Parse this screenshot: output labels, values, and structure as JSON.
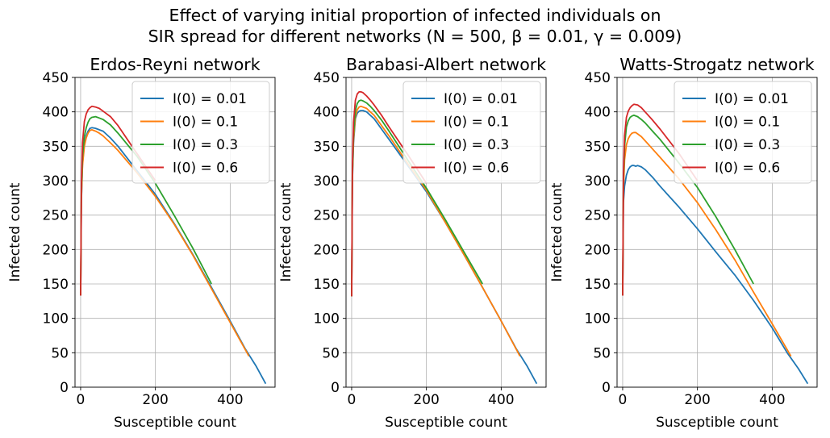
{
  "figure": {
    "title_line1": "Effect of varying initial proportion of infected individuals on",
    "title_line2": "SIR spread for different networks (N = 500, β = 0.01, γ = 0.009)"
  },
  "colors": {
    "I(0) = 0.01": "#1f77b4",
    "I(0) = 0.1": "#ff7f0e",
    "I(0) = 0.3": "#2ca02c",
    "I(0) = 0.6": "#d62728",
    "grid": "#b0b0b0"
  },
  "chart_data": [
    {
      "type": "line",
      "title": "Erdos-Reyni network",
      "xlabel": "Susceptible count",
      "ylabel": "Infected count",
      "xlim": [
        -15,
        520
      ],
      "ylim": [
        0,
        450
      ],
      "xticks": [
        0,
        200,
        400
      ],
      "yticks": [
        0,
        50,
        100,
        150,
        200,
        250,
        300,
        350,
        400,
        450
      ],
      "grid": true,
      "legend": "top-right",
      "series": [
        {
          "name": "I(0) = 0.01",
          "x": [
            0,
            2,
            5,
            10,
            15,
            20,
            25,
            30,
            40,
            50,
            60,
            80,
            100,
            150,
            200,
            250,
            300,
            350,
            400,
            440,
            470,
            495
          ],
          "y": [
            133,
            270,
            325,
            352,
            365,
            372,
            376,
            377,
            376,
            374,
            372,
            362,
            350,
            315,
            280,
            238,
            193,
            145,
            96,
            56,
            30,
            5
          ]
        },
        {
          "name": "I(0) = 0.1",
          "x": [
            0,
            2,
            5,
            10,
            15,
            20,
            25,
            30,
            40,
            50,
            60,
            80,
            100,
            150,
            200,
            250,
            300,
            350,
            400,
            450
          ],
          "y": [
            133,
            275,
            322,
            350,
            362,
            369,
            373,
            374,
            372,
            369,
            365,
            355,
            344,
            312,
            277,
            237,
            192,
            143,
            94,
            45
          ]
        },
        {
          "name": "I(0) = 0.3",
          "x": [
            0,
            2,
            5,
            10,
            15,
            20,
            25,
            30,
            40,
            50,
            60,
            80,
            100,
            150,
            200,
            250,
            300,
            350
          ],
          "y": [
            133,
            285,
            335,
            364,
            377,
            385,
            390,
            392,
            393,
            391,
            389,
            381,
            369,
            336,
            296,
            250,
            202,
            150
          ]
        },
        {
          "name": "I(0) = 0.6",
          "x": [
            0,
            2,
            5,
            10,
            15,
            20,
            25,
            30,
            40,
            50,
            60,
            80,
            100,
            150,
            200
          ],
          "y": [
            133,
            295,
            355,
            386,
            397,
            403,
            406,
            408,
            407,
            405,
            401,
            393,
            380,
            340,
            300
          ]
        }
      ]
    },
    {
      "type": "line",
      "title": "Barabasi-Albert network",
      "xlabel": "Susceptible count",
      "ylabel": "Infected count",
      "xlim": [
        -15,
        520
      ],
      "ylim": [
        0,
        450
      ],
      "xticks": [
        0,
        200,
        400
      ],
      "yticks": [
        0,
        50,
        100,
        150,
        200,
        250,
        300,
        350,
        400,
        450
      ],
      "grid": true,
      "legend": "top-right",
      "series": [
        {
          "name": "I(0) = 0.01",
          "x": [
            0,
            2,
            5,
            10,
            15,
            20,
            25,
            30,
            40,
            50,
            60,
            80,
            100,
            150,
            200,
            250,
            300,
            350,
            400,
            440,
            470,
            495
          ],
          "y": [
            132,
            300,
            355,
            390,
            398,
            401,
            402,
            402,
            400,
            395,
            390,
            375,
            360,
            322,
            284,
            240,
            193,
            145,
            96,
            56,
            30,
            5
          ]
        },
        {
          "name": "I(0) = 0.1",
          "x": [
            0,
            2,
            5,
            10,
            15,
            20,
            25,
            30,
            40,
            50,
            60,
            80,
            100,
            150,
            200,
            250,
            300,
            350,
            400,
            450
          ],
          "y": [
            132,
            305,
            360,
            393,
            403,
            407,
            408,
            407,
            405,
            400,
            395,
            380,
            365,
            325,
            286,
            240,
            193,
            145,
            96,
            45
          ]
        },
        {
          "name": "I(0) = 0.3",
          "x": [
            0,
            2,
            5,
            10,
            15,
            20,
            25,
            30,
            40,
            50,
            60,
            80,
            100,
            150,
            200,
            250,
            300,
            350
          ],
          "y": [
            132,
            310,
            368,
            402,
            412,
            416,
            417,
            416,
            413,
            408,
            402,
            388,
            372,
            330,
            289,
            244,
            197,
            150
          ]
        },
        {
          "name": "I(0) = 0.6",
          "x": [
            0,
            2,
            5,
            10,
            15,
            20,
            25,
            30,
            40,
            50,
            60,
            80,
            100,
            150,
            200
          ],
          "y": [
            132,
            320,
            385,
            417,
            426,
            429,
            429,
            428,
            423,
            417,
            410,
            395,
            378,
            338,
            296
          ]
        }
      ]
    },
    {
      "type": "line",
      "title": "Watts-Strogatz network",
      "xlabel": "Susceptible count",
      "ylabel": "Infected count",
      "xlim": [
        -15,
        520
      ],
      "ylim": [
        0,
        450
      ],
      "xticks": [
        0,
        200,
        400
      ],
      "yticks": [
        0,
        50,
        100,
        150,
        200,
        250,
        300,
        350,
        400,
        450
      ],
      "grid": true,
      "legend": "top-right",
      "series": [
        {
          "name": "I(0) = 0.01",
          "x": [
            0,
            2,
            5,
            10,
            15,
            20,
            25,
            30,
            35,
            40,
            50,
            60,
            80,
            100,
            120,
            150,
            200,
            250,
            300,
            350,
            400,
            440,
            470,
            495
          ],
          "y": [
            133,
            268,
            292,
            308,
            316,
            320,
            322,
            322,
            321,
            322,
            320,
            316,
            305,
            292,
            280,
            262,
            230,
            196,
            163,
            126,
            86,
            50,
            27,
            5
          ]
        },
        {
          "name": "I(0) = 0.1",
          "x": [
            0,
            2,
            5,
            10,
            15,
            20,
            25,
            30,
            35,
            40,
            50,
            60,
            80,
            100,
            150,
            200,
            250,
            300,
            350,
            400,
            450
          ],
          "y": [
            133,
            285,
            330,
            352,
            361,
            366,
            369,
            370,
            370,
            368,
            364,
            358,
            346,
            334,
            303,
            268,
            228,
            185,
            138,
            92,
            45
          ]
        },
        {
          "name": "I(0) = 0.3",
          "x": [
            0,
            2,
            5,
            10,
            15,
            20,
            25,
            30,
            40,
            50,
            60,
            80,
            100,
            150,
            200,
            250,
            300,
            350
          ],
          "y": [
            133,
            300,
            350,
            378,
            387,
            392,
            394,
            395,
            393,
            389,
            384,
            372,
            360,
            326,
            290,
            247,
            200,
            150
          ]
        },
        {
          "name": "I(0) = 0.6",
          "x": [
            0,
            2,
            5,
            10,
            15,
            20,
            25,
            30,
            40,
            50,
            60,
            80,
            100,
            150,
            200
          ],
          "y": [
            133,
            310,
            365,
            392,
            401,
            406,
            409,
            411,
            410,
            406,
            400,
            388,
            375,
            340,
            300
          ]
        }
      ]
    }
  ]
}
